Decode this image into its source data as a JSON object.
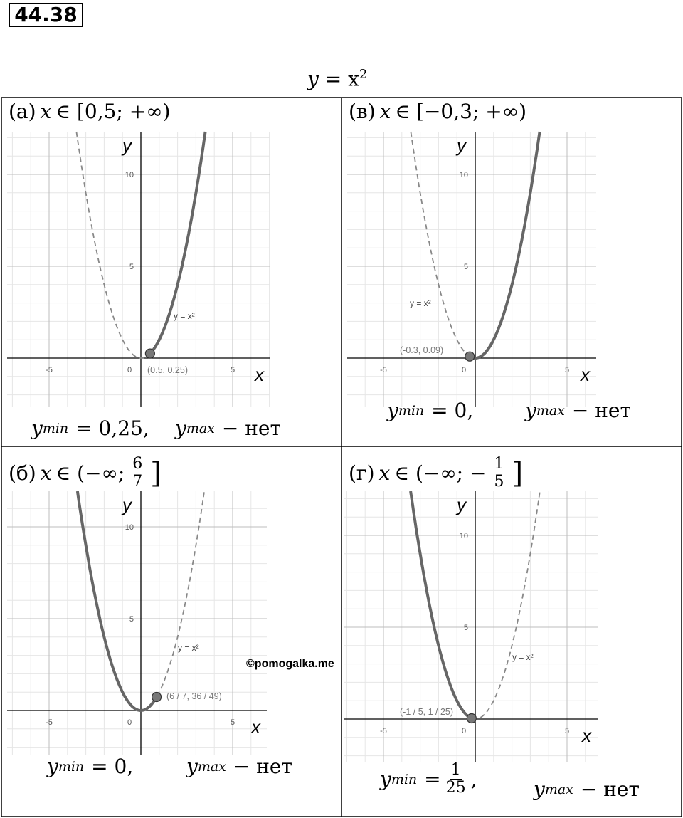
{
  "problem_number": "44.38",
  "function": {
    "var": "y",
    "eq": "= x",
    "sup": "2"
  },
  "axes": {
    "x": "x",
    "y": "y",
    "xticks": [
      -5,
      0,
      5
    ],
    "yticks": [
      5,
      10
    ]
  },
  "watermark": "©pomogalka.me",
  "panels": [
    {
      "domain": {
        "label": "(а)",
        "var": "x",
        "rest": "∈ [0,5; +∞)"
      },
      "curve_label": "y = x²",
      "point_label": "(0.5, 0.25)",
      "point": [
        0.5,
        0.25
      ],
      "solid_range": [
        0.5,
        null
      ],
      "ymin": {
        "var": "y",
        "sub": "min",
        "eq": "= 0,25,"
      },
      "ymax": {
        "var": "y",
        "sub": "max",
        "rest": "− нет"
      }
    },
    {
      "domain": {
        "label": "(в)",
        "var": "x",
        "rest": "∈ [−0,3; +∞)"
      },
      "curve_label": "y = x²",
      "point_label": "(-0.3, 0.09)",
      "point": [
        -0.3,
        0.09
      ],
      "solid_range": [
        -0.3,
        null
      ],
      "ymin": {
        "var": "y",
        "sub": "min",
        "eq": "= 0,"
      },
      "ymax": {
        "var": "y",
        "sub": "max",
        "rest": "− нет"
      }
    },
    {
      "domain": {
        "label": "(б)",
        "var": "x",
        "rest": "∈ (−∞;",
        "frac": [
          "6",
          "7"
        ],
        "close": "]"
      },
      "curve_label": "y = x²",
      "point_label": "(6 / 7, 36 / 49)",
      "point": [
        0.857,
        0.735
      ],
      "solid_range": [
        null,
        0.857
      ],
      "ymin": {
        "var": "y",
        "sub": "min",
        "eq": "= 0,"
      },
      "ymax": {
        "var": "y",
        "sub": "max",
        "rest": "− нет"
      }
    },
    {
      "domain": {
        "label": "(г)",
        "var": "x",
        "rest": "∈ (−∞; −",
        "frac": [
          "1",
          "5"
        ],
        "close": "]"
      },
      "curve_label": "y = x²",
      "point_label": "(-1 / 5, 1 / 25)",
      "point": [
        -0.2,
        0.04
      ],
      "solid_range": [
        null,
        -0.2
      ],
      "ymin": {
        "var": "y",
        "sub": "min",
        "eq": "=",
        "frac": [
          "1",
          "25"
        ],
        "tail": ","
      },
      "ymax": {
        "var": "y",
        "sub": "max",
        "rest": "− нет"
      }
    }
  ]
}
